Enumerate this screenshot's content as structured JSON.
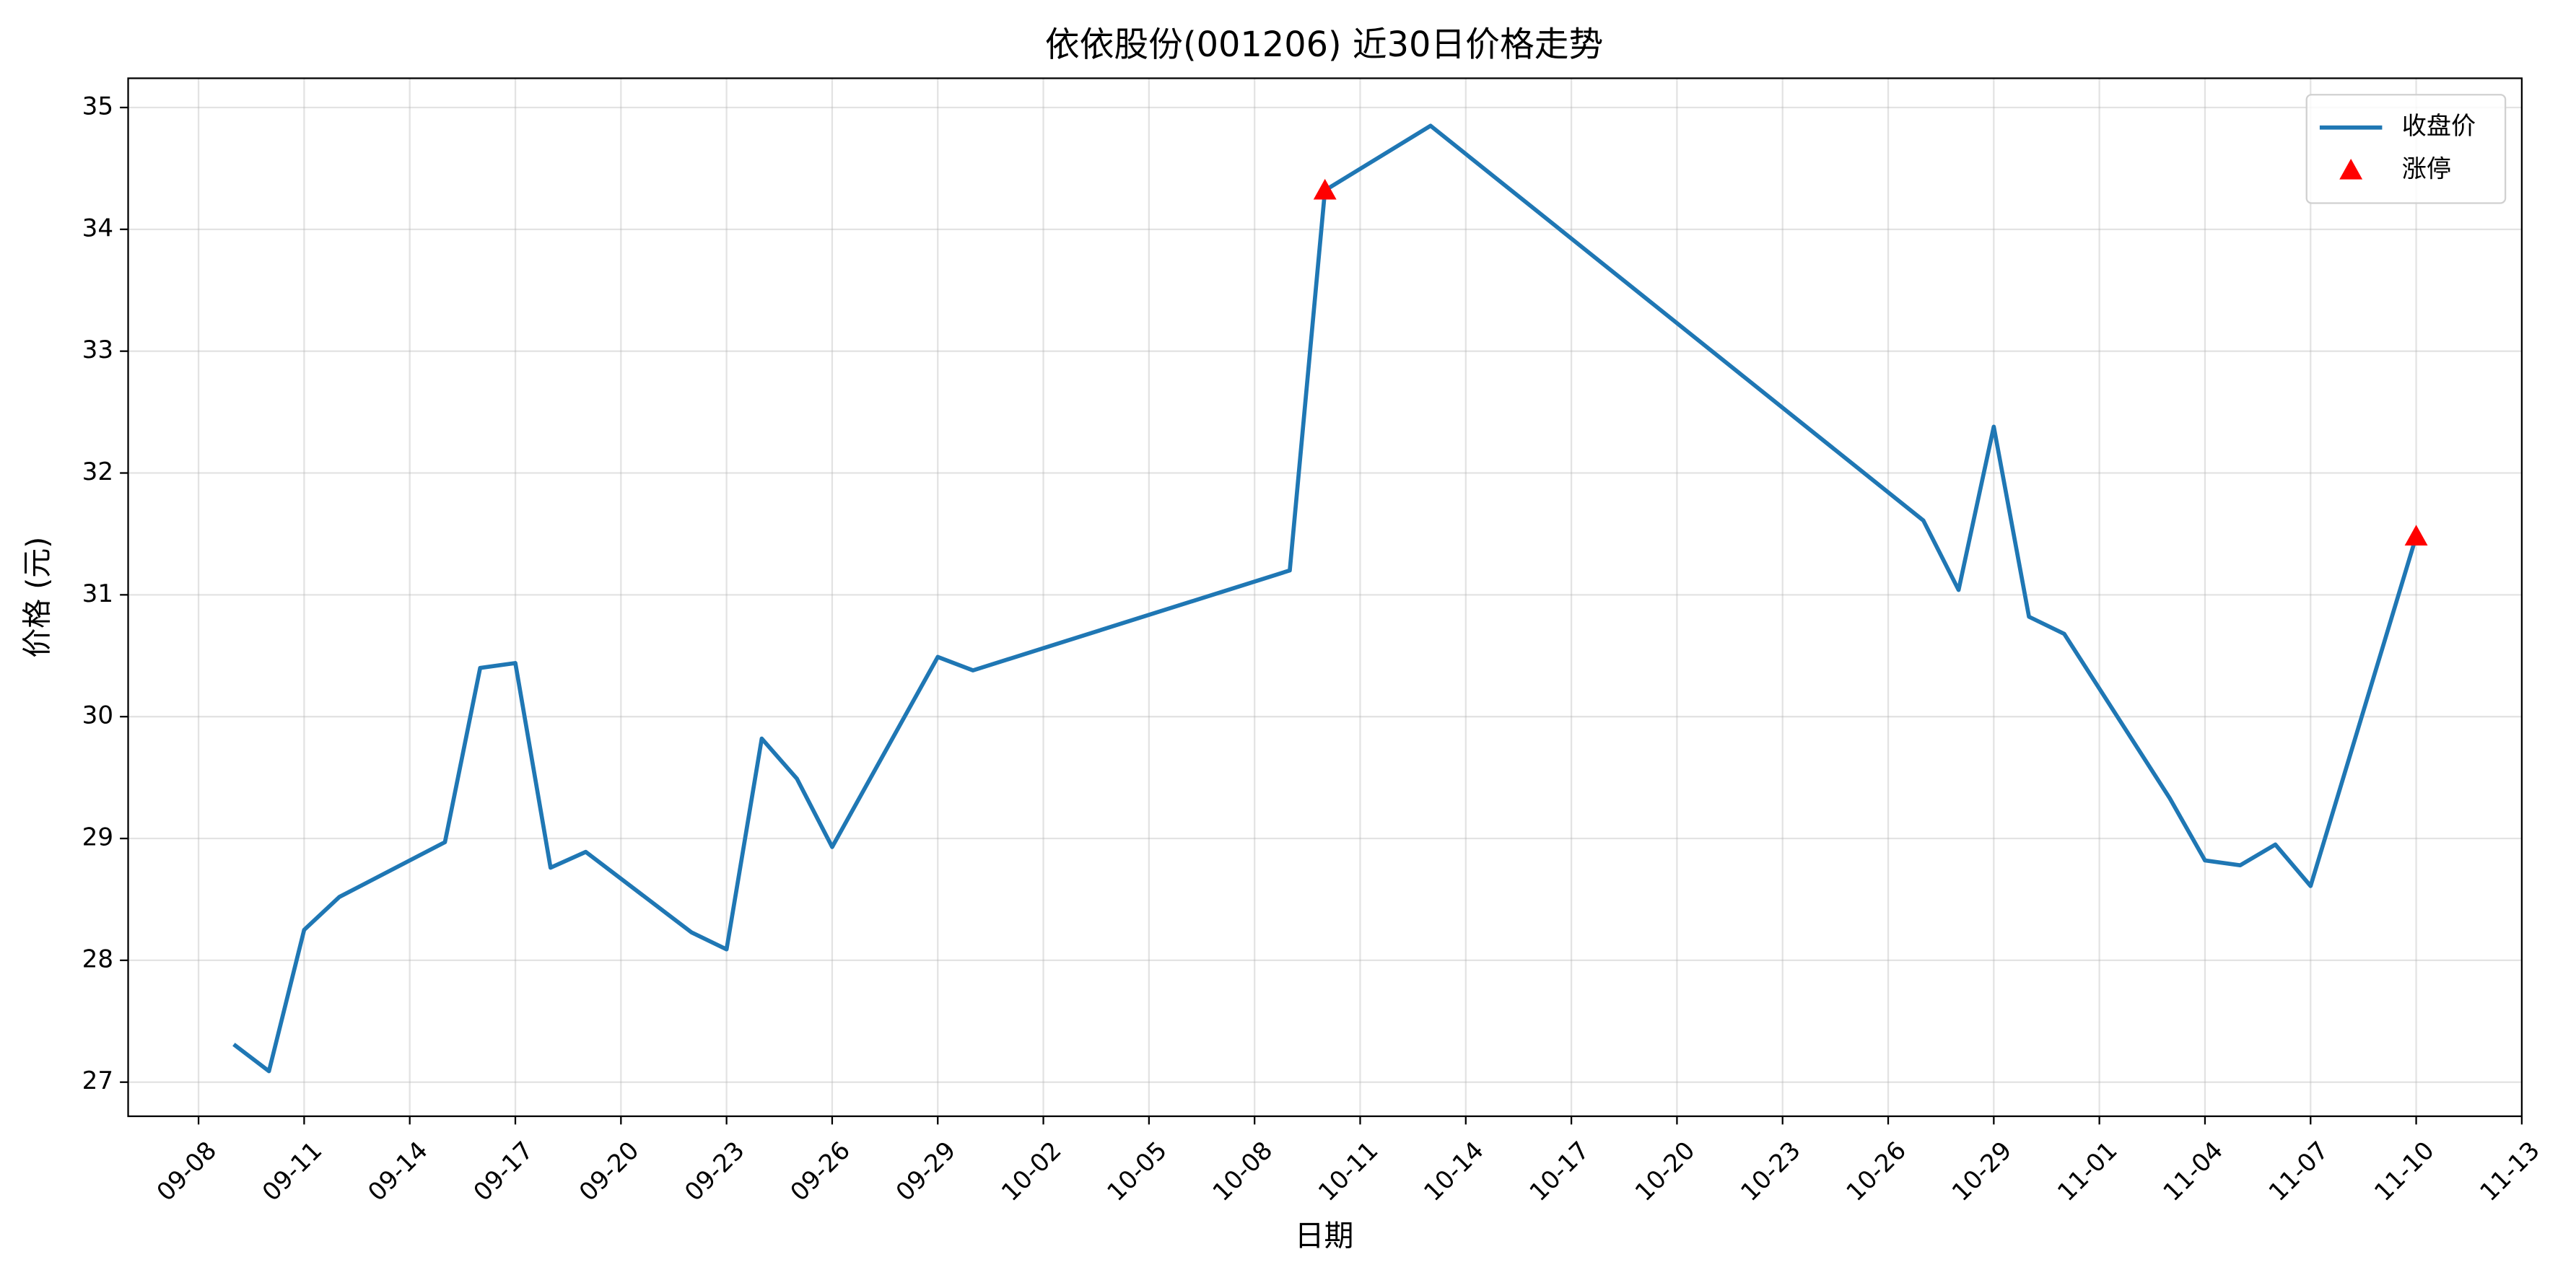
{
  "chart_data": {
    "type": "line",
    "title": "依依股份(001206) 近30日价格走势",
    "x_label": "日期",
    "y_label": "价格 (元)",
    "x": [
      "09-09",
      "09-10",
      "09-11",
      "09-12",
      "09-15",
      "09-16",
      "09-17",
      "09-18",
      "09-19",
      "09-22",
      "09-23",
      "09-24",
      "09-25",
      "09-26",
      "09-29",
      "09-30",
      "10-09",
      "10-10",
      "10-13",
      "10-27",
      "10-28",
      "10-29",
      "10-30",
      "10-31",
      "11-03",
      "11-04",
      "11-05",
      "11-06",
      "11-07",
      "11-10"
    ],
    "xlim": [
      "09-06",
      "11-13"
    ],
    "xticks": [
      "09-08",
      "09-11",
      "09-14",
      "09-17",
      "09-20",
      "09-23",
      "09-26",
      "09-29",
      "10-02",
      "10-05",
      "10-08",
      "10-11",
      "10-14",
      "10-17",
      "10-20",
      "10-23",
      "10-26",
      "10-29",
      "11-01",
      "11-04",
      "11-07",
      "11-10",
      "11-13"
    ],
    "ylim": [
      26.72,
      35.24
    ],
    "yticks": [
      27,
      28,
      29,
      30,
      31,
      32,
      33,
      34,
      35
    ],
    "grid": true,
    "legend": "upper right",
    "series": [
      {
        "name": "收盘价",
        "color": "#1f77b4",
        "values": [
          27.31,
          27.09,
          28.25,
          28.52,
          28.97,
          30.4,
          30.44,
          28.76,
          28.89,
          28.23,
          28.09,
          29.82,
          29.49,
          28.93,
          30.49,
          30.38,
          31.2,
          34.32,
          34.85,
          31.61,
          31.04,
          32.38,
          30.82,
          30.68,
          29.33,
          28.82,
          28.78,
          28.95,
          28.61,
          31.48
        ]
      },
      {
        "name": "涨停",
        "type": "scatter",
        "marker": "triangle",
        "color": "#ff0000",
        "x": [
          "10-10",
          "11-10"
        ],
        "values": [
          34.32,
          31.48
        ]
      }
    ]
  }
}
